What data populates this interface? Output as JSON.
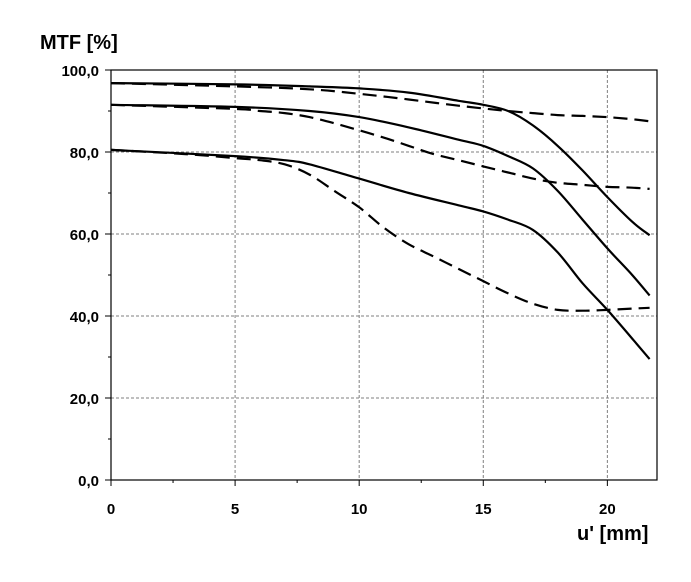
{
  "chart_data": {
    "type": "line",
    "xlabel": "u' [mm]",
    "ylabel": "MTF [%]",
    "xlim": [
      0,
      22
    ],
    "ylim": [
      0,
      100
    ],
    "x_ticks": [
      0,
      5,
      10,
      15,
      20
    ],
    "x_tick_labels": [
      "0",
      "5",
      "10",
      "15",
      "20"
    ],
    "y_ticks": [
      0,
      20,
      40,
      60,
      80,
      100
    ],
    "y_tick_labels": [
      "0,0",
      "20,0",
      "40,0",
      "60,0",
      "80,0",
      "100,0"
    ],
    "grid": true,
    "legend": "none",
    "colors": {
      "line": "#000000",
      "grid": "#7f7f7f"
    },
    "series": [
      {
        "style": "solid",
        "x": [
          0,
          5,
          8,
          10,
          12,
          14,
          15,
          16,
          17,
          18,
          19,
          20,
          21,
          21.7
        ],
        "y": [
          96.8,
          96.5,
          96,
          95.5,
          94.5,
          92.5,
          91.5,
          90,
          86.5,
          81.5,
          75.5,
          69,
          63,
          59.7
        ]
      },
      {
        "style": "solid",
        "x": [
          0,
          5,
          8,
          10,
          12,
          14,
          15,
          16,
          17,
          18,
          19,
          20,
          21,
          21.7
        ],
        "y": [
          91.5,
          91,
          90,
          88.5,
          86,
          83,
          81.5,
          79,
          76,
          70.5,
          63.5,
          56.5,
          50,
          45
        ]
      },
      {
        "style": "solid",
        "x": [
          0,
          5,
          7,
          8,
          10,
          12,
          14,
          15,
          16,
          17,
          18,
          19,
          20,
          21,
          21.7
        ],
        "y": [
          80.5,
          79,
          78,
          77,
          73.5,
          70,
          67,
          65.5,
          63.5,
          61,
          55.5,
          48,
          41.5,
          34.5,
          29.5
        ]
      },
      {
        "style": "dashed",
        "x": [
          0,
          5,
          8,
          10,
          12,
          14,
          16,
          17,
          18,
          19,
          20,
          21,
          21.7
        ],
        "y": [
          96.8,
          96,
          95.3,
          94.2,
          92.8,
          91.3,
          90,
          89.5,
          89,
          88.8,
          88.5,
          88,
          87.5
        ]
      },
      {
        "style": "dashed",
        "x": [
          0,
          5,
          6,
          7,
          8,
          9,
          10,
          11,
          12,
          13,
          14,
          15,
          16,
          17,
          18,
          19,
          20,
          21,
          21.7
        ],
        "y": [
          91.5,
          90.5,
          90,
          89.5,
          88.5,
          87,
          85.3,
          83.5,
          81.5,
          79.5,
          78,
          76.5,
          75,
          73.5,
          72.5,
          72,
          71.5,
          71.3,
          71
        ]
      },
      {
        "style": "dashed",
        "x": [
          0,
          3,
          5,
          6,
          7,
          8,
          9,
          10,
          11,
          12,
          13,
          14,
          15,
          16,
          17,
          18,
          19,
          20,
          21,
          21.7
        ],
        "y": [
          80.5,
          79.5,
          78.5,
          78,
          77,
          74.5,
          70.5,
          66.5,
          61.5,
          57.5,
          54.5,
          51.5,
          48.5,
          45.5,
          43,
          41.5,
          41.3,
          41.5,
          41.8,
          42
        ]
      }
    ]
  }
}
